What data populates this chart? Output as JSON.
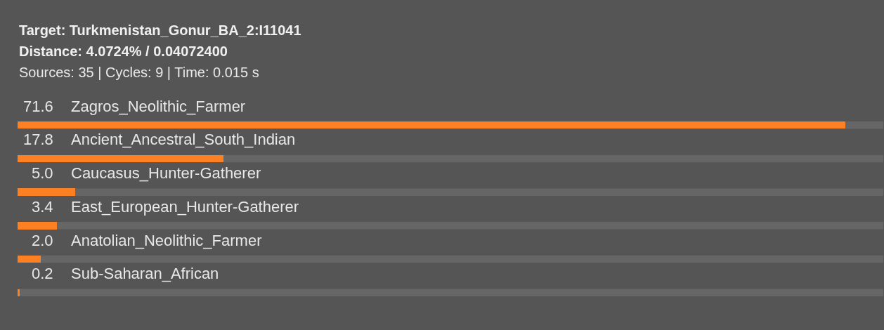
{
  "chart_data": {
    "type": "bar",
    "orientation": "horizontal",
    "title": "Target: Turkmenistan_Gonur_BA_2:I11041",
    "subtitle": "Distance: 4.0724% / 0.04072400",
    "annotations": [
      "Sources: 35 | Cycles: 9 | Time: 0.015 s"
    ],
    "categories": [
      "Zagros_Neolithic_Farmer",
      "Ancient_Ancestral_South_Indian",
      "Caucasus_Hunter-Gatherer",
      "East_European_Hunter-Gatherer",
      "Anatolian_Neolithic_Farmer",
      "Sub-Saharan_African"
    ],
    "values": [
      71.6,
      17.8,
      5.0,
      3.4,
      2.0,
      0.2
    ],
    "value_labels": [
      "71.6",
      "17.8",
      "5.0",
      "3.4",
      "2.0",
      "0.2"
    ],
    "color": "#fd8023"
  }
}
